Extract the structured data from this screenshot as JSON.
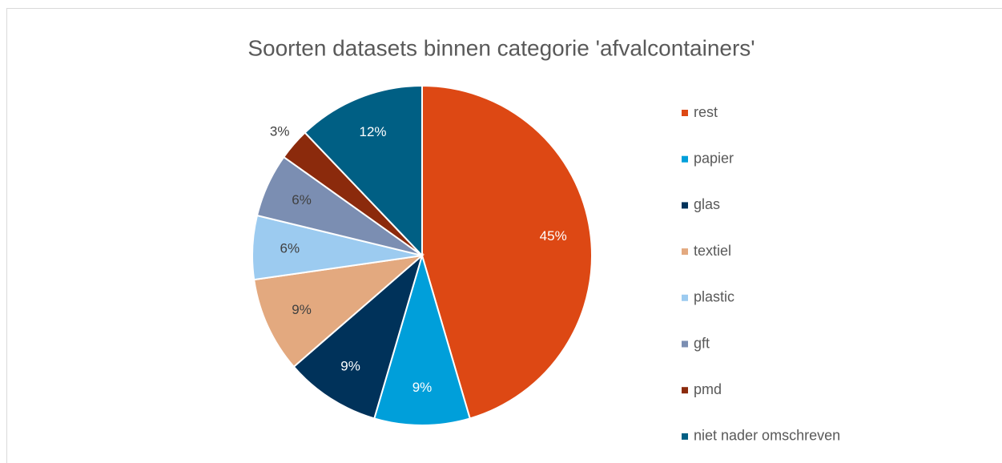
{
  "chart_data": {
    "type": "pie",
    "title": "Soorten datasets binnen categorie 'afvalcontainers'",
    "categories": [
      "rest",
      "papier",
      "glas",
      "textiel",
      "plastic",
      "gft",
      "pmd",
      "niet nader omschreven"
    ],
    "values": [
      45,
      9,
      9,
      9,
      6,
      6,
      3,
      12
    ],
    "value_labels": [
      "45%",
      "9%",
      "9%",
      "9%",
      "6%",
      "6%",
      "3%",
      "12%"
    ],
    "colors": [
      "#dd4814",
      "#009fda",
      "#00325a",
      "#e3a97f",
      "#9ccbf0",
      "#7b8eb2",
      "#8b2a0c",
      "#005f84"
    ],
    "legend": "right"
  }
}
